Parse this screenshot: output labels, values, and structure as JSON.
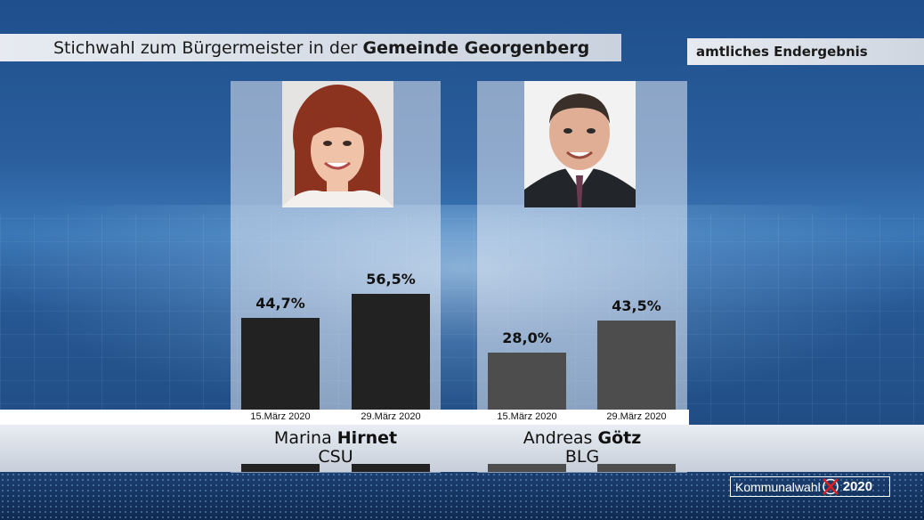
{
  "title": {
    "prefix": "Stichwahl zum Bürgermeister in der ",
    "emphasis": "Gemeinde Georgenberg"
  },
  "status": "amtliches Endergebnis",
  "colors": {
    "candidate1_bar": "#222222",
    "candidate2_bar": "#4d4d4d",
    "logo_cross": "#e02020"
  },
  "candidates": [
    {
      "first_name": "Marina",
      "last_name": "Hirnet",
      "party": "CSU",
      "results": [
        {
          "date": "15.März 2020",
          "label": "44,7%"
        },
        {
          "date": "29.März 2020",
          "label": "56,5%"
        }
      ]
    },
    {
      "first_name": "Andreas",
      "last_name": "Götz",
      "party": "BLG",
      "results": [
        {
          "date": "15.März 2020",
          "label": "28,0%"
        },
        {
          "date": "29.März 2020",
          "label": "43,5%"
        }
      ]
    }
  ],
  "chart_data": {
    "type": "bar",
    "title": "Stichwahl zum Bürgermeister in der Gemeinde Georgenberg",
    "subtitle": "amtliches Endergebnis",
    "categories": [
      "15.März 2020",
      "29.März 2020"
    ],
    "series": [
      {
        "name": "Marina Hirnet",
        "values": [
          44.7,
          56.5
        ]
      },
      {
        "name": "Andreas Götz",
        "values": [
          28.0,
          43.5
        ]
      }
    ],
    "ylim": [
      0,
      100
    ],
    "grid": false
  },
  "logo": {
    "text": "Kommunalwahl",
    "year": "2020"
  }
}
